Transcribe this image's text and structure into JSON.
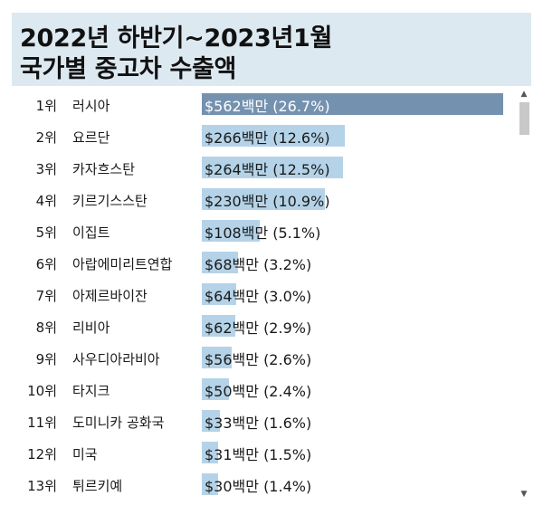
{
  "header": {
    "title_line1": "2022년 하반기~2023년1월",
    "title_line2": "국가별 중고차 수출액"
  },
  "chart_data": {
    "type": "bar",
    "orientation": "horizontal",
    "title": "2022년 하반기~2023년1월 국가별 중고차 수출액",
    "value_unit": "백만 USD",
    "rows": [
      {
        "rank": "1위",
        "country": "러시아",
        "value": 562,
        "share": 26.7,
        "label": "$562백만 (26.7%)"
      },
      {
        "rank": "2위",
        "country": "요르단",
        "value": 266,
        "share": 12.6,
        "label": "$266백만 (12.6%)"
      },
      {
        "rank": "3위",
        "country": "카자흐스탄",
        "value": 264,
        "share": 12.5,
        "label": "$264백만 (12.5%)"
      },
      {
        "rank": "4위",
        "country": "키르기스스탄",
        "value": 230,
        "share": 10.9,
        "label": "$230백만 (10.9%)"
      },
      {
        "rank": "5위",
        "country": "이집트",
        "value": 108,
        "share": 5.1,
        "label": "$108백만 (5.1%)"
      },
      {
        "rank": "6위",
        "country": "아랍에미리트연합",
        "value": 68,
        "share": 3.2,
        "label": "$68백만 (3.2%)"
      },
      {
        "rank": "7위",
        "country": "아제르바이잔",
        "value": 64,
        "share": 3.0,
        "label": "$64백만 (3.0%)"
      },
      {
        "rank": "8위",
        "country": "리비아",
        "value": 62,
        "share": 2.9,
        "label": "$62백만 (2.9%)"
      },
      {
        "rank": "9위",
        "country": "사우디아라비아",
        "value": 56,
        "share": 2.6,
        "label": "$56백만 (2.6%)"
      },
      {
        "rank": "10위",
        "country": "타지크",
        "value": 50,
        "share": 2.4,
        "label": "$50백만 (2.4%)"
      },
      {
        "rank": "11위",
        "country": "도미니카 공화국",
        "value": 33,
        "share": 1.6,
        "label": "$33백만 (1.6%)"
      },
      {
        "rank": "12위",
        "country": "미국",
        "value": 31,
        "share": 1.5,
        "label": "$31백만 (1.5%)"
      },
      {
        "rank": "13위",
        "country": "튀르키예",
        "value": 30,
        "share": 1.4,
        "label": "$30백만 (1.4%)"
      }
    ],
    "xlim": [
      0,
      562
    ],
    "colors": {
      "highlight": "#7492b0",
      "default": "#b4d3e8",
      "header_bg": "#dde9f1"
    }
  },
  "scrollbar": {
    "up_icon": "▲",
    "down_icon": "▼"
  }
}
